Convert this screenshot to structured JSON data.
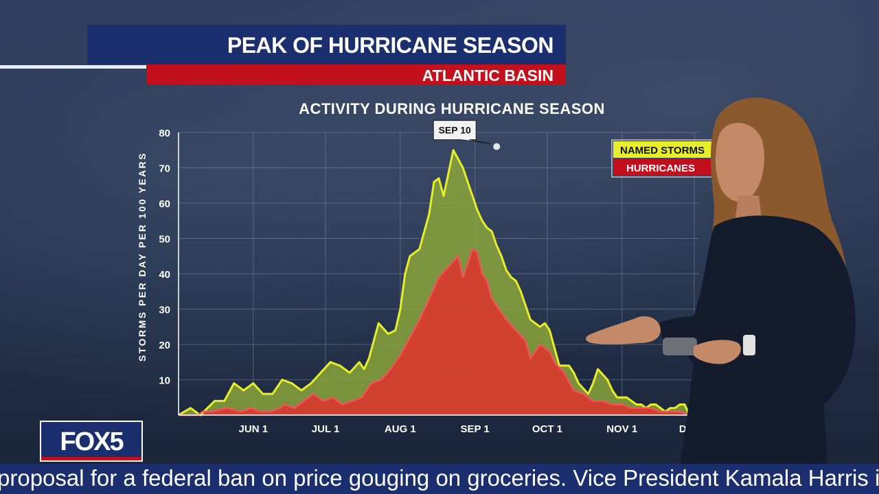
{
  "header": {
    "title": "PEAK OF HURRICANE SEASON",
    "subtitle": "ATLANTIC BASIN"
  },
  "logo": {
    "text": "FOX5"
  },
  "ticker": {
    "text": "proposal for a federal ban on price gouging on groceries.   Vice President Kamala Harris is visiting l"
  },
  "colors": {
    "named_storms": "#e8ee2c",
    "hurricanes": "#f0555e",
    "named_fill": "#8aa43a",
    "hurricane_fill": "#d8392e",
    "brand_blue": "#1b2f6e",
    "brand_red": "#c4101c"
  },
  "chart_data": {
    "type": "area",
    "title": "ACTIVITY DURING HURRICANE SEASON",
    "ylabel": "STORMS PER DAY PER 100 YEARS",
    "xlabel": "",
    "ylim": [
      0,
      80
    ],
    "yticks": [
      10,
      20,
      30,
      40,
      50,
      60,
      70,
      80
    ],
    "xlim_days": [
      0,
      216
    ],
    "xticks": [
      {
        "label": "JUN 1",
        "day": 31
      },
      {
        "label": "JUL 1",
        "day": 61
      },
      {
        "label": "AUG 1",
        "day": 92
      },
      {
        "label": "SEP 1",
        "day": 123
      },
      {
        "label": "OCT 1",
        "day": 153
      },
      {
        "label": "NOV 1",
        "day": 184
      },
      {
        "label": "DEC 1",
        "day": 214
      }
    ],
    "grid": true,
    "legend_position": "top-right",
    "annotation": {
      "label": "SEP 10",
      "day": 132,
      "value": 76
    },
    "series": [
      {
        "name": "NAMED STORMS",
        "x": [
          0,
          5,
          9,
          15,
          19,
          23,
          27,
          31,
          35,
          39,
          41,
          43,
          47,
          51,
          55,
          59,
          63,
          67,
          71,
          75,
          77,
          79,
          83,
          87,
          90,
          92,
          94,
          96,
          100,
          104,
          106,
          108,
          110,
          114,
          118,
          120,
          122,
          124,
          126,
          128,
          130,
          132,
          134,
          136,
          138,
          140,
          142,
          146,
          150,
          152,
          154,
          158,
          160,
          162,
          164,
          166,
          170,
          172,
          174,
          178,
          180,
          182,
          186,
          188,
          190,
          192,
          194,
          196,
          198,
          200,
          202,
          204,
          206,
          208,
          210,
          212,
          214,
          216
        ],
        "values": [
          0,
          2,
          0,
          4,
          4,
          9,
          7,
          9,
          6,
          6,
          8,
          10,
          9,
          7,
          9,
          12,
          15,
          14,
          12,
          15,
          13,
          16,
          26,
          23,
          24,
          30,
          40,
          45,
          47,
          57,
          66,
          67,
          62,
          75,
          70,
          66,
          62,
          58,
          55,
          53,
          52,
          48,
          45,
          41,
          39,
          38,
          35,
          27,
          25,
          26,
          24,
          14,
          14,
          14,
          12,
          9,
          6,
          9,
          13,
          10,
          7,
          5,
          5,
          4,
          3,
          3,
          2,
          3,
          3,
          2,
          1,
          2,
          2,
          3,
          3,
          0,
          0,
          0
        ]
      },
      {
        "name": "HURRICANES",
        "x": [
          0,
          8,
          10,
          14,
          20,
          26,
          30,
          34,
          38,
          42,
          44,
          48,
          52,
          56,
          60,
          64,
          68,
          72,
          76,
          80,
          84,
          88,
          92,
          96,
          100,
          104,
          108,
          112,
          116,
          118,
          120,
          122,
          124,
          126,
          128,
          130,
          132,
          134,
          136,
          140,
          144,
          146,
          150,
          154,
          156,
          160,
          164,
          168,
          170,
          172,
          176,
          180,
          184,
          188,
          192,
          196,
          200,
          204,
          208,
          212,
          216
        ],
        "values": [
          0,
          0,
          1,
          1,
          2,
          1,
          2,
          1,
          1,
          2,
          3,
          2,
          4,
          6,
          4,
          5,
          3,
          4,
          5,
          9,
          10,
          13,
          17,
          22,
          27,
          33,
          39,
          42,
          45,
          39,
          43,
          47,
          46,
          40,
          38,
          33,
          31,
          29,
          27,
          24,
          21,
          16,
          20,
          18,
          15,
          12,
          7,
          6,
          5,
          4,
          4,
          3,
          3,
          2,
          2,
          2,
          1,
          1,
          1,
          0,
          0
        ]
      }
    ]
  }
}
